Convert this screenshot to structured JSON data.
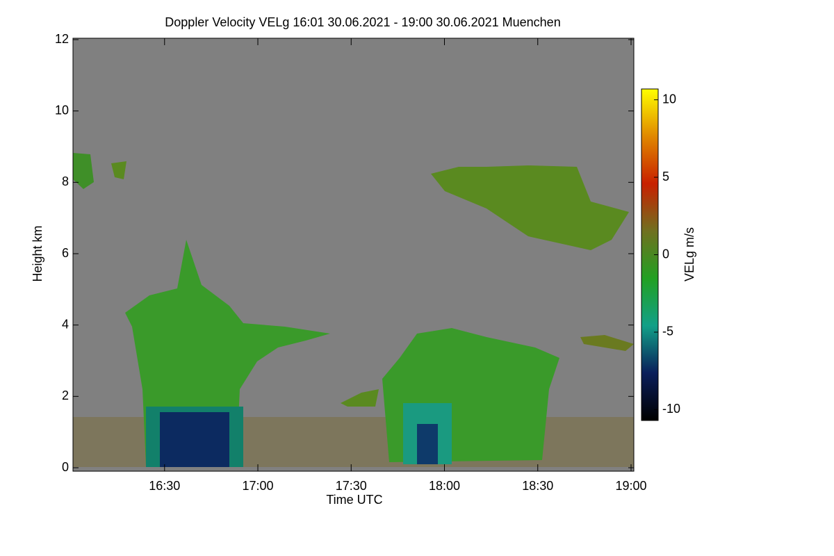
{
  "chart_data": {
    "type": "heatmap",
    "title": "Doppler Velocity VELg   16:01 30.06.2021 - 19:00 30.06.2021 Muenchen",
    "x_label": "Time UTC",
    "y_label": "Height km",
    "xlim": [
      961,
      1140
    ],
    "xticks": [
      {
        "value": 990,
        "label": "16:30"
      },
      {
        "value": 1020,
        "label": "17:00"
      },
      {
        "value": 1050,
        "label": "17:30"
      },
      {
        "value": 1080,
        "label": "18:00"
      },
      {
        "value": 1110,
        "label": "18:30"
      },
      {
        "value": 1140,
        "label": "19:00"
      }
    ],
    "ylim": [
      0,
      12
    ],
    "yticks": [
      0,
      2,
      4,
      6,
      8,
      10,
      12
    ],
    "colorbar": {
      "label": "VELg m/s",
      "lim": [
        -10.7,
        10.7
      ],
      "ticks": [
        10,
        5,
        0,
        -5,
        -10
      ],
      "colors": [
        "#000000",
        "#0a1e5a",
        "#12a088",
        "#22a022",
        "#707020",
        "#c82000",
        "#e08800",
        "#ffff00"
      ]
    }
  }
}
